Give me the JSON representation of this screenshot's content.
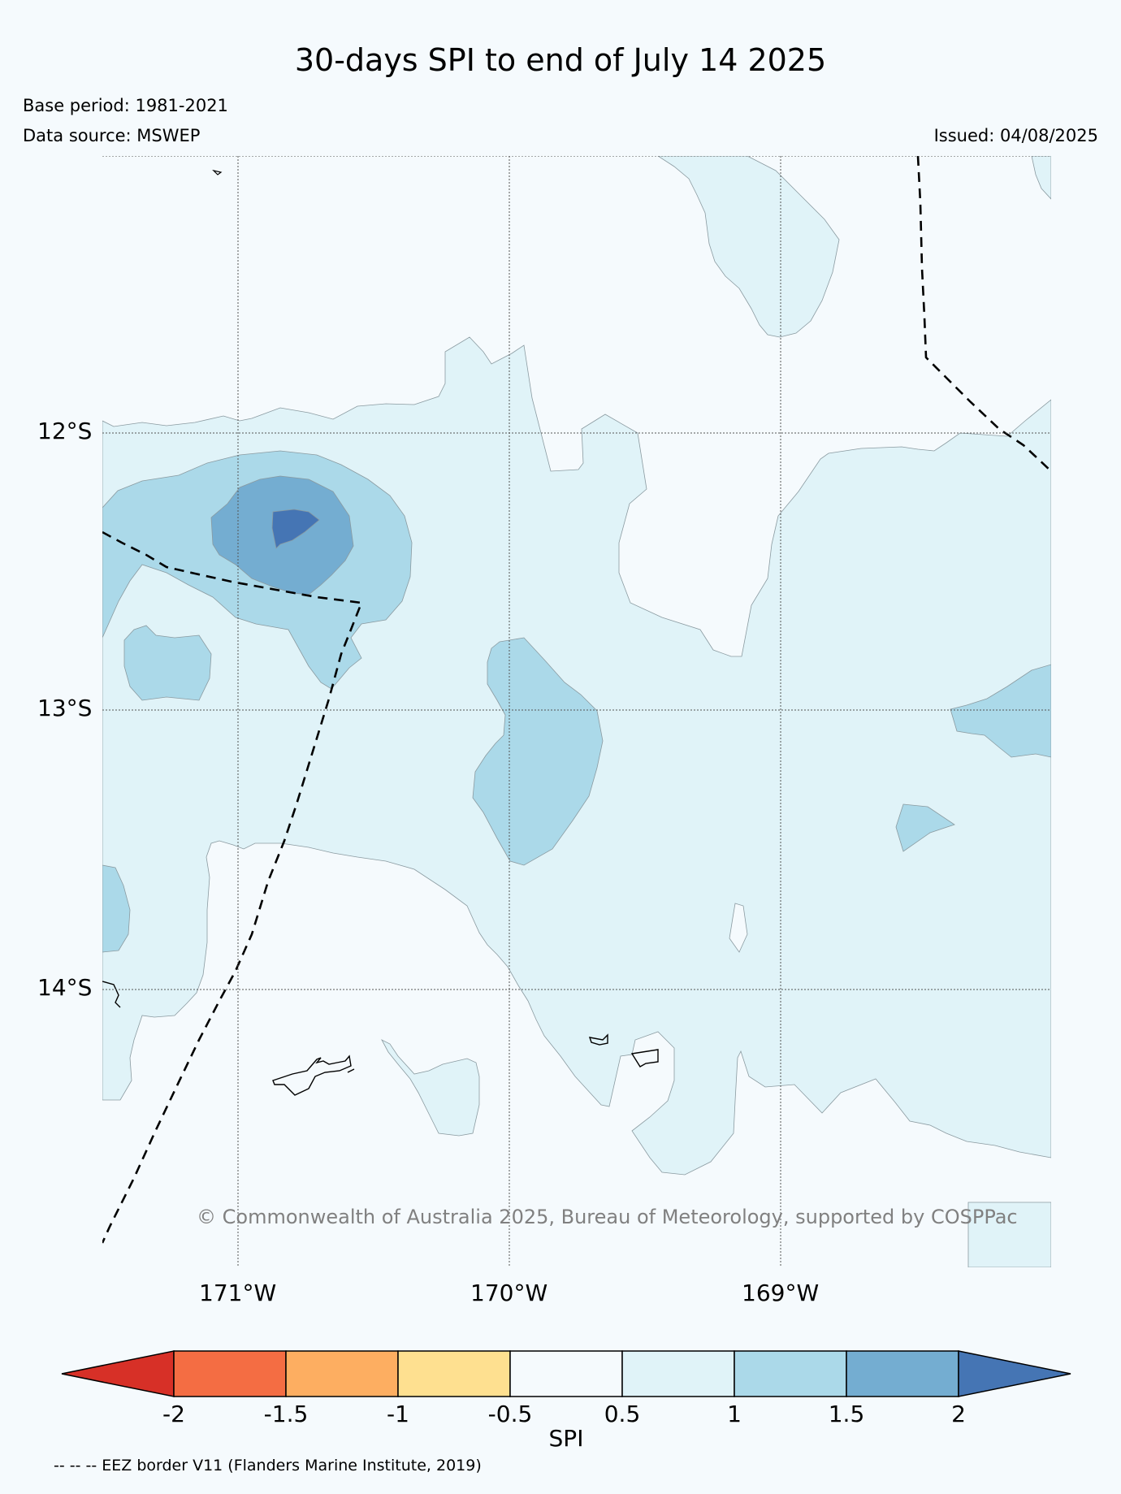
{
  "header": {
    "title": "30-days SPI to end of July 14 2025",
    "base_period": "Base period: 1981-2021",
    "data_source": "Data source: MSWEP",
    "issued": "Issued: 04/08/2025"
  },
  "map": {
    "lat_labels": [
      "12°S",
      "13°S",
      "14°S"
    ],
    "lon_labels": [
      "171°W",
      "170°W",
      "169°W"
    ],
    "copyright": "© Commonwealth of Australia 2025, Bureau of Meteorology, supported by COSPPac"
  },
  "colorbar": {
    "title": "SPI",
    "ticks": [
      "-2",
      "-1.5",
      "-1",
      "-0.5",
      "0.5",
      "1",
      "1.5",
      "2"
    ],
    "colors": {
      "below_-2": "#d73027",
      "-2_-1.5": "#f46d43",
      "-1.5_-1": "#fdae61",
      "-1_-0.5": "#fee090",
      "-0.5_0.5": "#f5fafd",
      "0.5_1": "#e0f3f8",
      "1_1.5": "#abd9e9",
      "1.5_2": "#74add1",
      "above_2": "#4575b4"
    }
  },
  "legend": {
    "eez_note": "-- -- -- EEZ border V11 (Flanders Marine Institute, 2019)"
  }
}
